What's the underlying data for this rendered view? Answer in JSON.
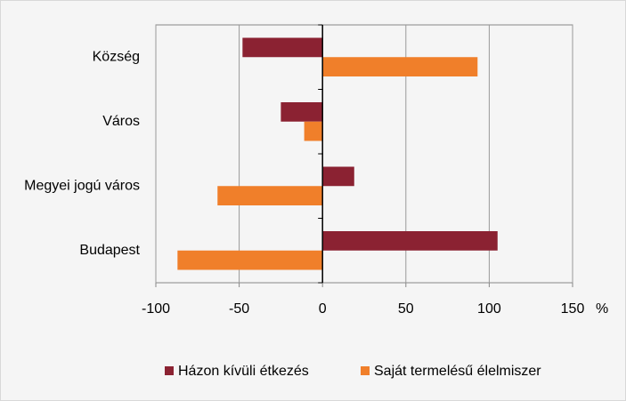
{
  "chart_data": {
    "type": "hbar",
    "categories": [
      "Község",
      "Város",
      "Megyei jogú város",
      "Budapest"
    ],
    "series": [
      {
        "name": "Házon kívüli étkezés",
        "color": "#8b2232",
        "values": [
          -48,
          -25,
          19,
          105
        ]
      },
      {
        "name": "Saját termelésű élelmiszer",
        "color": "#f07f2a",
        "values": [
          93,
          -11,
          -63,
          -87
        ]
      }
    ],
    "xlim": [
      -100,
      150
    ],
    "xticks": [
      -100,
      -50,
      0,
      50,
      100,
      150
    ],
    "xlabel": "%",
    "grid": true,
    "legend": "bottom"
  }
}
